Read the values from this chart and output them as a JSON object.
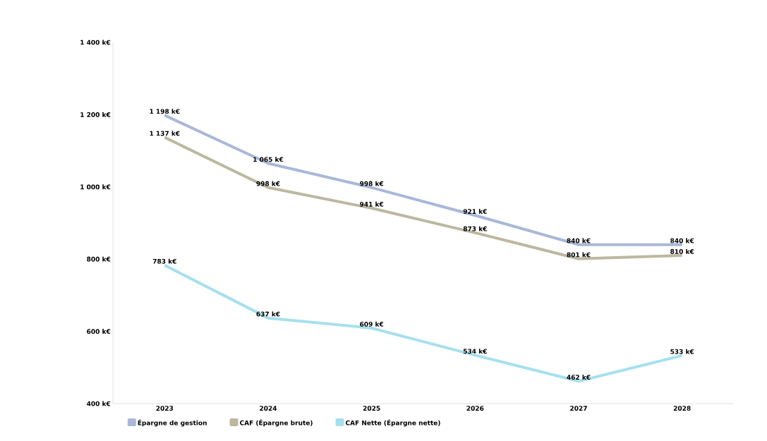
{
  "chart_data": {
    "type": "line",
    "categories": [
      "2023",
      "2024",
      "2025",
      "2026",
      "2027",
      "2028"
    ],
    "series": [
      {
        "name": "Épargne de gestion",
        "color": "#a9b8d8",
        "values": [
          1198,
          1065,
          998,
          921,
          840,
          840
        ],
        "value_labels": [
          "1 198 k€",
          "1 065 k€",
          "998 k€",
          "921 k€",
          "840 k€",
          "840 k€"
        ]
      },
      {
        "name": "CAF (Épargne brute)",
        "color": "#bcb8a0",
        "values": [
          1137,
          998,
          941,
          873,
          801,
          810
        ],
        "value_labels": [
          "1 137 k€",
          "998 k€",
          "941 k€",
          "873 k€",
          "801 k€",
          "810 k€"
        ]
      },
      {
        "name": "CAF Nette (Épargne nette)",
        "color": "#a6e0ee",
        "values": [
          783,
          637,
          609,
          534,
          462,
          533
        ],
        "value_labels": [
          "783 k€",
          "637 k€",
          "609 k€",
          "534 k€",
          "462 k€",
          "533 k€"
        ]
      }
    ],
    "ylim": [
      400,
      1400
    ],
    "yticks": [
      {
        "value": 400,
        "label": "400 k€"
      },
      {
        "value": 600,
        "label": "600 k€"
      },
      {
        "value": 800,
        "label": "800 k€"
      },
      {
        "value": 1000,
        "label": "1 000 k€"
      },
      {
        "value": 1200,
        "label": "1 200 k€"
      },
      {
        "value": 1400,
        "label": "1 400 k€"
      }
    ],
    "legend": "bottom",
    "marker": "none",
    "line_style": "solid",
    "grid": false
  }
}
